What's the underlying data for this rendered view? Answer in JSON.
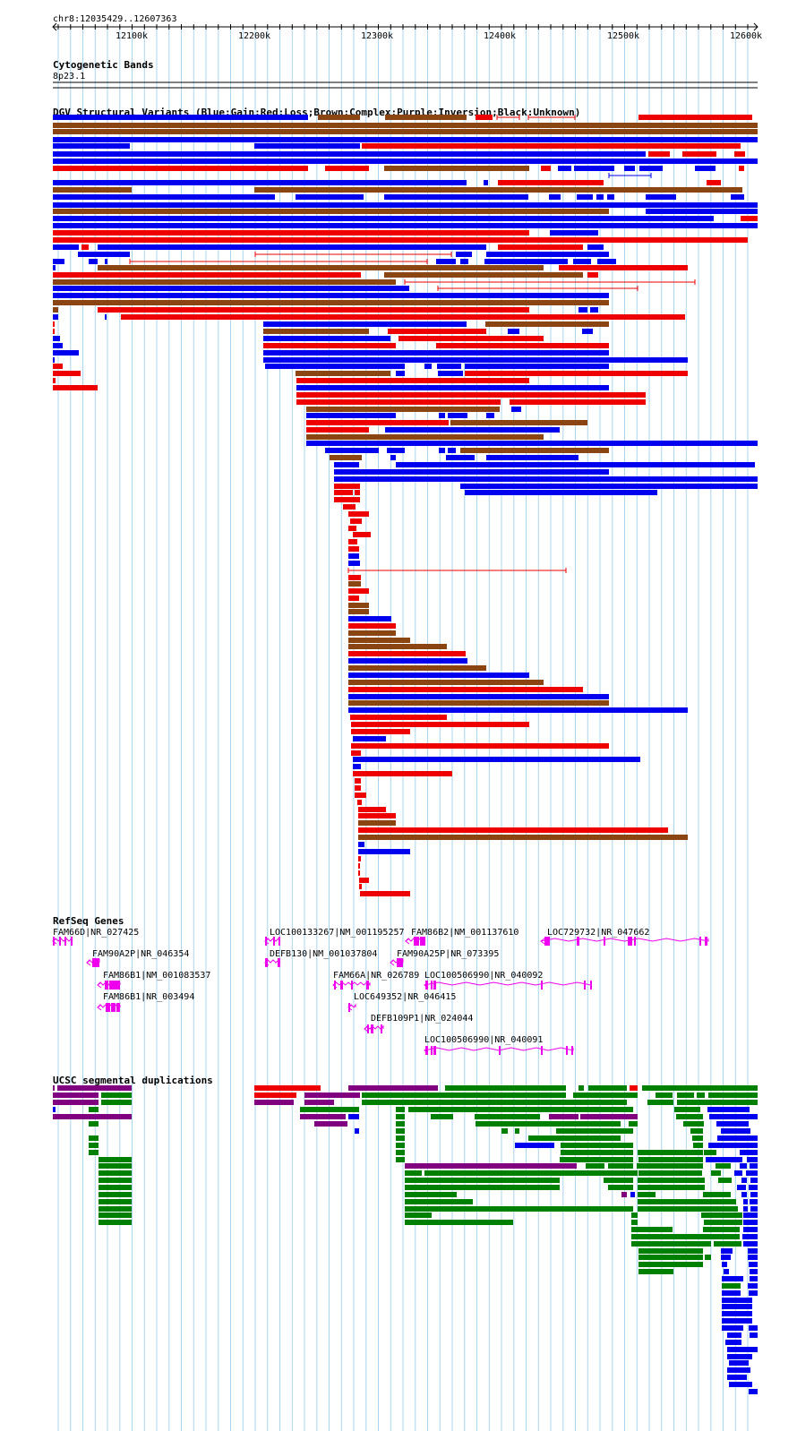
{
  "header": {
    "location": "chr8:12035429..12607363"
  },
  "ruler": {
    "ticks": [
      "12100k",
      "12200k",
      "12300k",
      "12400k",
      "12500k",
      "12600k"
    ]
  },
  "tracks": {
    "cytoband": {
      "title": "Cytogenetic Bands",
      "band": "8p23.1"
    },
    "dgv": {
      "title": "DGV Structural Variants (Blue:Gain;Red:Loss;Brown:Complex;Purple:Inversion;Black:Unknown)"
    },
    "refseq": {
      "title": "RefSeq Genes",
      "genes": [
        {
          "label": "FAM66D|NR_027425"
        },
        {
          "label": "FAM90A2P|NR_046354"
        },
        {
          "label": "FAM86B1|NM_001083537"
        },
        {
          "label": "FAM86B1|NR_003494"
        },
        {
          "label": "LOC100133267|NM_001195257"
        },
        {
          "label": "DEFB130|NM_001037804"
        },
        {
          "label": "FAM86B2|NM_001137610"
        },
        {
          "label": "FAM90A25P|NR_073395"
        },
        {
          "label": "FAM66A|NR_026789"
        },
        {
          "label": "LOC649352|NR_046415"
        },
        {
          "label": "DEFB109P1|NR_024044"
        },
        {
          "label": "LOC100506990|NR_040092"
        },
        {
          "label": "LOC100506990|NR_040091"
        },
        {
          "label": "LOC729732|NR_047662"
        }
      ]
    },
    "segdup": {
      "title": "UCSC segmental duplications"
    }
  },
  "colors": {
    "gain": "#0000ee",
    "loss": "#ee0000",
    "complex": "#8b4513",
    "gene": "#ee00ee",
    "dup_green": "#008000",
    "dup_purple": "#800080",
    "dup_red": "#ee0000",
    "dup_blue": "#0000ee",
    "grid": "#a9d6ee"
  }
}
